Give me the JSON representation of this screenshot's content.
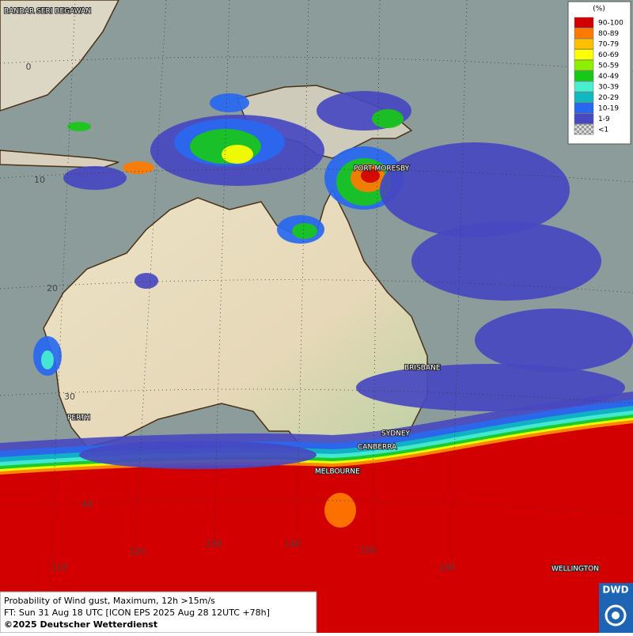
{
  "map": {
    "cities": [
      "BANDAR SERI BEGAWAN",
      "PORT MORESBY",
      "BRISBANE",
      "PERTH",
      "SYDNEY",
      "CANBERRA",
      "MELBOURNE",
      "WELLINGTON"
    ],
    "lat_labels": [
      "0",
      "10",
      "20",
      "30",
      "40"
    ],
    "lon_labels": [
      "110",
      "120",
      "130",
      "140",
      "150",
      "160"
    ]
  },
  "legend": {
    "title": "(%)",
    "items": [
      {
        "label": "90-100",
        "color": "#d20000"
      },
      {
        "label": "80-89",
        "color": "#ff7a00"
      },
      {
        "label": "70-79",
        "color": "#ffc000"
      },
      {
        "label": "60-69",
        "color": "#ffff00"
      },
      {
        "label": "50-59",
        "color": "#8cf000"
      },
      {
        "label": "40-49",
        "color": "#18c818"
      },
      {
        "label": "30-39",
        "color": "#48f0d0"
      },
      {
        "label": "20-29",
        "color": "#10b8c0"
      },
      {
        "label": "10-19",
        "color": "#2868f0"
      },
      {
        "label": "1-9",
        "color": "#4848c0"
      },
      {
        "label": "<1",
        "color": "#b0b0b0"
      }
    ]
  },
  "footer": {
    "lines": [
      "Probability of Wind gust, Maximum, 12h >15m/s",
      "FT: Sun 31 Aug 18 UTC [ICON EPS 2025 Aug 28 12UTC +78h]",
      "©2025 Deutscher Wetterdienst"
    ]
  },
  "logo": "DWD"
}
